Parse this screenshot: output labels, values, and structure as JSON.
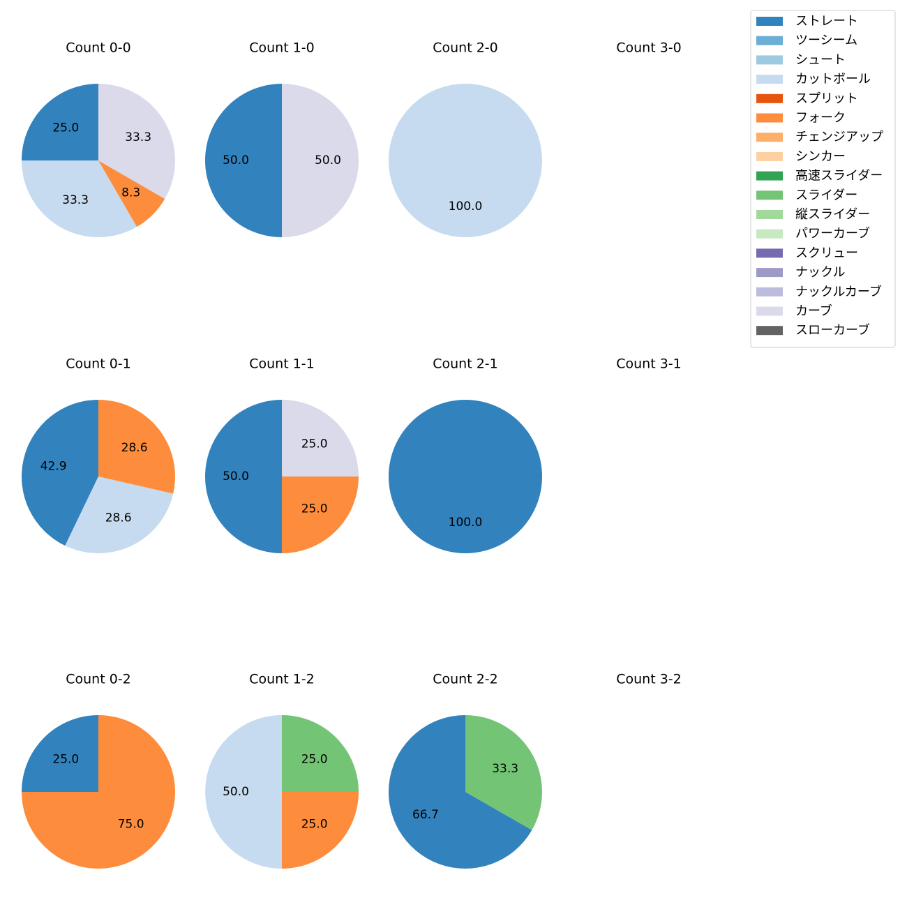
{
  "chart_data": {
    "type": "pie",
    "legend_position": "top-right",
    "series_names": [
      "ストレート",
      "ツーシーム",
      "シュート",
      "カットボール",
      "スプリット",
      "フォーク",
      "チェンジアップ",
      "シンカー",
      "高速スライダー",
      "スライダー",
      "縦スライダー",
      "パワーカーブ",
      "スクリュー",
      "ナックル",
      "ナックルカーブ",
      "カーブ",
      "スローカーブ"
    ],
    "colors": [
      "#3182bd",
      "#6baed6",
      "#9ecae1",
      "#c6dbef",
      "#e6550d",
      "#fd8d3c",
      "#fdae6b",
      "#fdd0a2",
      "#31a354",
      "#74c476",
      "#a1d99b",
      "#c7e9c0",
      "#756bb1",
      "#9e9ac8",
      "#bcbddc",
      "#dadaeb",
      "#636363"
    ],
    "panels": [
      {
        "title": "Count 0-0",
        "slices": [
          {
            "pitch": "ストレート",
            "value": 25.0
          },
          {
            "pitch": "カットボール",
            "value": 33.3
          },
          {
            "pitch": "フォーク",
            "value": 8.3
          },
          {
            "pitch": "カーブ",
            "value": 33.3
          }
        ]
      },
      {
        "title": "Count 1-0",
        "slices": [
          {
            "pitch": "ストレート",
            "value": 50.0
          },
          {
            "pitch": "カーブ",
            "value": 50.0
          }
        ]
      },
      {
        "title": "Count 2-0",
        "slices": [
          {
            "pitch": "カットボール",
            "value": 100.0
          }
        ]
      },
      {
        "title": "Count 3-0",
        "slices": []
      },
      {
        "title": "Count 0-1",
        "slices": [
          {
            "pitch": "ストレート",
            "value": 42.9
          },
          {
            "pitch": "カットボール",
            "value": 28.6
          },
          {
            "pitch": "フォーク",
            "value": 28.6
          }
        ]
      },
      {
        "title": "Count 1-1",
        "slices": [
          {
            "pitch": "ストレート",
            "value": 50.0
          },
          {
            "pitch": "フォーク",
            "value": 25.0
          },
          {
            "pitch": "カーブ",
            "value": 25.0
          }
        ]
      },
      {
        "title": "Count 2-1",
        "slices": [
          {
            "pitch": "ストレート",
            "value": 100.0
          }
        ]
      },
      {
        "title": "Count 3-1",
        "slices": []
      },
      {
        "title": "Count 0-2",
        "slices": [
          {
            "pitch": "ストレート",
            "value": 25.0
          },
          {
            "pitch": "フォーク",
            "value": 75.0
          }
        ]
      },
      {
        "title": "Count 1-2",
        "slices": [
          {
            "pitch": "カットボール",
            "value": 50.0
          },
          {
            "pitch": "フォーク",
            "value": 25.0
          },
          {
            "pitch": "スライダー",
            "value": 25.0
          }
        ]
      },
      {
        "title": "Count 2-2",
        "slices": [
          {
            "pitch": "ストレート",
            "value": 66.7
          },
          {
            "pitch": "スライダー",
            "value": 33.3
          }
        ]
      },
      {
        "title": "Count 3-2",
        "slices": []
      }
    ]
  }
}
